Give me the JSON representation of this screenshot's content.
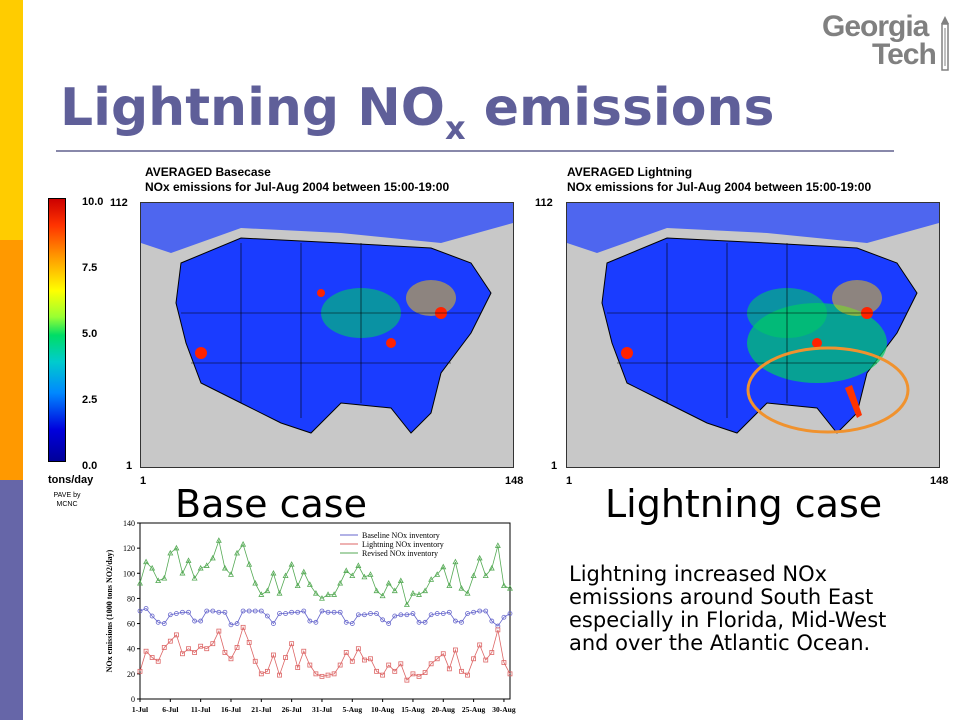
{
  "slide": {
    "title_main": "Lightning NO",
    "title_sub": "x",
    "title_tail": " emissions",
    "logo_line1": "Georgia",
    "logo_line2": "Tech"
  },
  "left_map": {
    "title_line1": "AVERAGED Basecase",
    "title_line2": "NOx emissions for Jul-Aug 2004 between 15:00-19:00",
    "y_top": "112",
    "y_bottom": "1",
    "x_left": "1",
    "x_right": "148",
    "case_label": "Base case"
  },
  "right_map": {
    "title_line1": "AVERAGED Lightning",
    "title_line2": "NOx emissions for Jul-Aug 2004 between 15:00-19:00",
    "y_top": "112",
    "y_bottom": "1",
    "x_left": "1",
    "x_right": "148",
    "case_label": "Lightning case"
  },
  "colorbar": {
    "ticks": [
      "10.0",
      "7.5",
      "5.0",
      "2.5",
      "0.0"
    ],
    "unit": "tons/day",
    "credit": "PAVE by MCNC"
  },
  "description": "Lightning increased NOx emissions around South East especially in Florida, Mid-West and over the Atlantic Ocean.",
  "chart_data": {
    "type": "line",
    "ylabel": "NOx emissions (1000 tons NO2/day)",
    "ylim": [
      0,
      140
    ],
    "yticks": [
      0,
      20,
      40,
      60,
      80,
      100,
      120,
      140
    ],
    "xticks": [
      "1-Jul",
      "6-Jul",
      "11-Jul",
      "16-Jul",
      "21-Jul",
      "26-Jul",
      "31-Jul",
      "5-Aug",
      "10-Aug",
      "15-Aug",
      "20-Aug",
      "25-Aug",
      "30-Aug"
    ],
    "n_points": 62,
    "series": [
      {
        "name": "Baseline NOx inventory",
        "color": "#6666cc",
        "values": [
          70,
          72,
          66,
          61,
          60,
          67,
          68,
          69,
          69,
          62,
          62,
          70,
          70,
          69,
          69,
          59,
          60,
          70,
          70,
          70,
          70,
          66,
          60,
          68,
          68,
          69,
          69,
          70,
          62,
          61,
          70,
          69,
          69,
          69,
          61,
          60,
          67,
          67,
          68,
          68,
          63,
          60,
          66,
          67,
          67,
          68,
          61,
          61,
          67,
          68,
          68,
          69,
          62,
          61,
          68,
          69,
          70,
          70,
          62,
          58,
          65,
          68
        ]
      },
      {
        "name": "Lightning NOx inventory",
        "color": "#dd6666",
        "values": [
          22,
          38,
          33,
          30,
          41,
          46,
          51,
          36,
          40,
          37,
          42,
          40,
          44,
          54,
          37,
          32,
          41,
          57,
          45,
          30,
          20,
          22,
          35,
          19,
          33,
          44,
          25,
          38,
          27,
          20,
          18,
          19,
          20,
          27,
          37,
          30,
          40,
          31,
          32,
          22,
          19,
          27,
          22,
          28,
          15,
          20,
          18,
          21,
          28,
          32,
          36,
          24,
          39,
          22,
          19,
          32,
          43,
          31,
          37,
          55,
          29,
          20
        ]
      },
      {
        "name": "Revised NOx inventory",
        "color": "#55aa55",
        "values": [
          92,
          109,
          104,
          94,
          96,
          116,
          120,
          100,
          110,
          96,
          104,
          106,
          112,
          126,
          104,
          99,
          116,
          123,
          107,
          92,
          83,
          86,
          100,
          84,
          98,
          107,
          90,
          101,
          91,
          84,
          80,
          83,
          83,
          92,
          102,
          98,
          106,
          97,
          99,
          86,
          82,
          92,
          86,
          94,
          75,
          84,
          83,
          86,
          95,
          99,
          105,
          90,
          109,
          88,
          84,
          98,
          112,
          98,
          104,
          122,
          90,
          88
        ]
      }
    ]
  }
}
